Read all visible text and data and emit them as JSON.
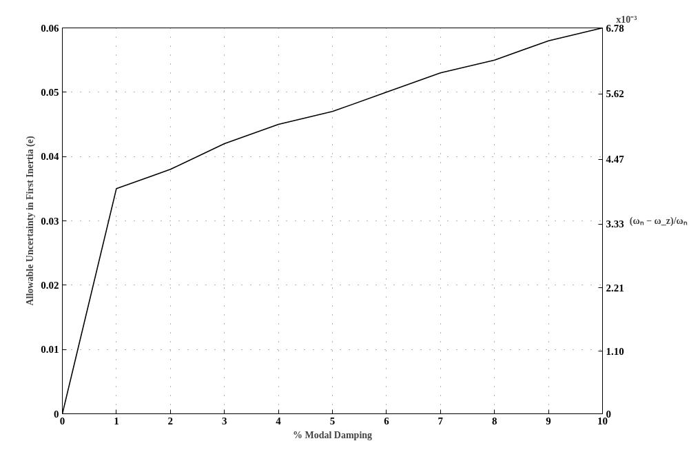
{
  "chart_data": {
    "type": "line",
    "xlabel": "% Modal Damping",
    "ylabel": "Allowable Uncertainty in First Inertia (e)",
    "y2label": "(ωₙ − ω_z)/ωₙ",
    "annotations": [
      "x10⁻³"
    ],
    "x": [
      0,
      1,
      2,
      3,
      4,
      5,
      6,
      7,
      8,
      9,
      10
    ],
    "series": [
      {
        "color": "#000000",
        "values": [
          0,
          0.035,
          0.038,
          0.042,
          0.045,
          0.047,
          0.05,
          0.053,
          0.055,
          0.058,
          0.06
        ]
      }
    ],
    "xlim": [
      0,
      10
    ],
    "xticks": [
      0,
      1,
      2,
      3,
      4,
      5,
      6,
      7,
      8,
      9,
      10
    ],
    "ylim": [
      0,
      0.06
    ],
    "yticks": [
      0,
      0.01,
      0.02,
      0.03,
      0.04,
      0.05,
      0.06
    ],
    "y2lim": [
      0,
      6.78
    ],
    "y2ticks": [
      0,
      {
        "value": 1.1,
        "label": "1.10"
      },
      2.21,
      3.33,
      4.47,
      5.62,
      6.78
    ],
    "grid": true,
    "line_style": "solid",
    "marker": "none"
  }
}
